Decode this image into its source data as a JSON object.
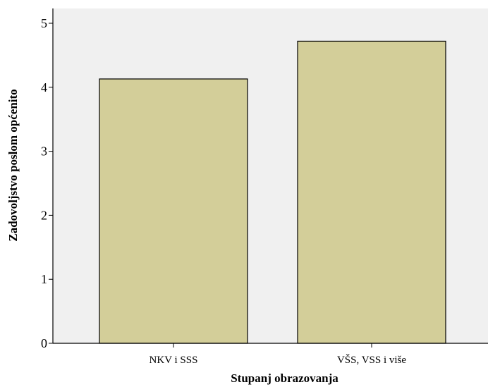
{
  "chart_data": {
    "type": "bar",
    "title": "",
    "categories": [
      "NKV i SSS",
      "VŠS, VSS i više"
    ],
    "values": [
      4.13,
      4.72
    ],
    "xlabel": "Stupanj obrazovanja",
    "ylabel": "Zadovoljstvo poslom općenito",
    "ylim": [
      0,
      5
    ],
    "yticks": [
      "0",
      "1",
      "2",
      "3",
      "4",
      "5"
    ],
    "grid": false,
    "legend": "none",
    "colors": {
      "plot_background": "#f0f0f0",
      "bar_fill": "#d3ce99",
      "bar_stroke": "#000000",
      "axis": "#000000"
    }
  }
}
